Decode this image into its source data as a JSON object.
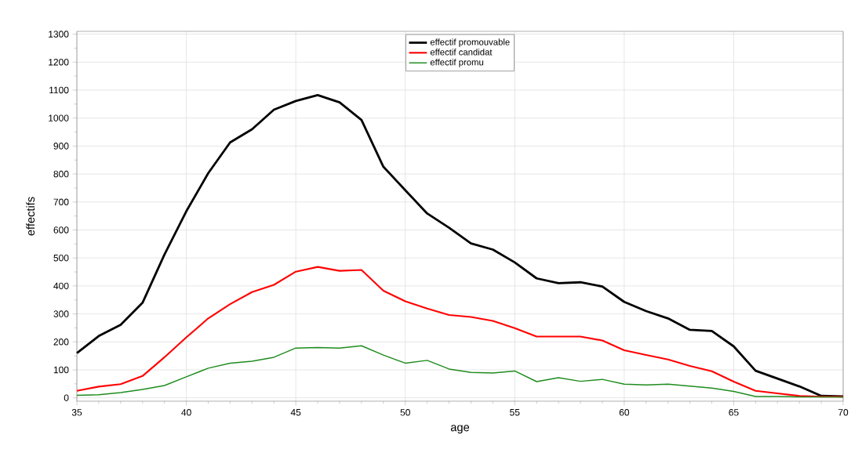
{
  "chart_data": {
    "type": "line",
    "xlabel": "age",
    "ylabel": "effectifs",
    "x": [
      35,
      36,
      37,
      38,
      39,
      40,
      41,
      42,
      43,
      44,
      45,
      46,
      47,
      48,
      49,
      50,
      51,
      52,
      53,
      54,
      55,
      56,
      57,
      58,
      59,
      60,
      61,
      62,
      63,
      64,
      65,
      66,
      67,
      68,
      69,
      70
    ],
    "series": [
      {
        "name": "effectif promouvable",
        "color": "#000000",
        "values": [
          160,
          221,
          261,
          340,
          512,
          667,
          803,
          913,
          960,
          1030,
          1061,
          1082,
          1056,
          993,
          826,
          742,
          659,
          608,
          552,
          530,
          484,
          427,
          410,
          413,
          398,
          343,
          310,
          284,
          243,
          239,
          184,
          97,
          69,
          41,
          7,
          5
        ]
      },
      {
        "name": "effectif candidat",
        "color": "#ff0000",
        "values": [
          25,
          40,
          49,
          78,
          145,
          216,
          284,
          335,
          378,
          404,
          451,
          468,
          454,
          457,
          383,
          345,
          319,
          296,
          289,
          275,
          249,
          219,
          219,
          219,
          205,
          170,
          153,
          137,
          114,
          95,
          58,
          25,
          16,
          7,
          4,
          4
        ]
      },
      {
        "name": "effectif promu",
        "color": "#1e8c1e",
        "values": [
          9,
          11,
          19,
          30,
          44,
          75,
          106,
          124,
          131,
          145,
          178,
          180,
          178,
          186,
          153,
          124,
          134,
          103,
          91,
          89,
          96,
          58,
          72,
          59,
          66,
          49,
          46,
          49,
          42,
          35,
          23,
          5,
          5,
          3,
          3,
          3
        ]
      }
    ],
    "xlim": [
      35,
      70
    ],
    "xticks": [
      35,
      40,
      45,
      50,
      55,
      60,
      65,
      70
    ],
    "ylim": [
      -12,
      1310
    ],
    "yticks": [
      0,
      100,
      200,
      300,
      400,
      500,
      600,
      700,
      800,
      900,
      1000,
      1100,
      1200,
      1300
    ],
    "grid": true,
    "legend": "top"
  }
}
